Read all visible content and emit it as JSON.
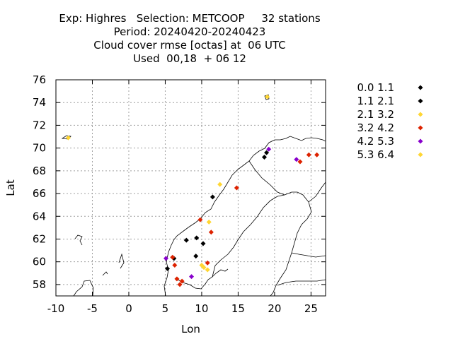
{
  "chart_data": {
    "type": "scatter",
    "title_lines": [
      "Exp: Highres   Selection: METCOOP     32 stations",
      "Period: 20240420-20240423",
      "Cloud cover rmse [octas] at  06 UTC",
      "Used  00,18  + 06 12"
    ],
    "xlabel": "Lon",
    "ylabel": "Lat",
    "xlim": [
      -10,
      27
    ],
    "ylim": [
      57,
      76
    ],
    "xticks": [
      -10,
      -5,
      0,
      5,
      10,
      15,
      20,
      25
    ],
    "yticks": [
      58,
      60,
      62,
      64,
      66,
      68,
      70,
      72,
      74,
      76
    ],
    "grid": true,
    "legend_position": "right",
    "series": [
      {
        "name": "0.0 1.1",
        "color": "#000000",
        "points": []
      },
      {
        "name": "1.1 2.1",
        "color": "#000000",
        "points": [
          [
            11.5,
            65.7
          ],
          [
            7.9,
            61.9
          ],
          [
            9.3,
            62.1
          ],
          [
            10.2,
            61.6
          ],
          [
            9.2,
            60.5
          ],
          [
            5.3,
            59.4
          ],
          [
            18.6,
            69.2
          ],
          [
            18.9,
            69.6
          ],
          [
            6.2,
            60.3
          ]
        ]
      },
      {
        "name": "2.1 3.2",
        "color": "#ffd633",
        "points": [
          [
            19.0,
            74.5
          ],
          [
            -8.3,
            70.9
          ],
          [
            12.5,
            66.8
          ],
          [
            11.0,
            63.5
          ],
          [
            10.3,
            59.5
          ],
          [
            10.8,
            59.3
          ]
        ]
      },
      {
        "name": "3.2 4.2",
        "color": "#dd2200",
        "points": [
          [
            14.8,
            66.5
          ],
          [
            11.3,
            62.6
          ],
          [
            9.8,
            63.7
          ],
          [
            6.0,
            60.4
          ],
          [
            6.3,
            59.7
          ],
          [
            10.8,
            59.9
          ],
          [
            6.6,
            58.5
          ],
          [
            7.3,
            58.3
          ],
          [
            7.0,
            58.0
          ],
          [
            23.5,
            68.8
          ],
          [
            24.7,
            69.4
          ],
          [
            25.8,
            69.4
          ]
        ]
      },
      {
        "name": "4.2 5.3",
        "color": "#8800cc",
        "points": [
          [
            5.1,
            60.3
          ],
          [
            8.6,
            58.7
          ],
          [
            23.0,
            69.0
          ],
          [
            19.2,
            69.9
          ]
        ]
      },
      {
        "name": "5.3 6.4",
        "color": "#ffd633",
        "points": [
          [
            10.0,
            59.7
          ]
        ]
      }
    ]
  }
}
